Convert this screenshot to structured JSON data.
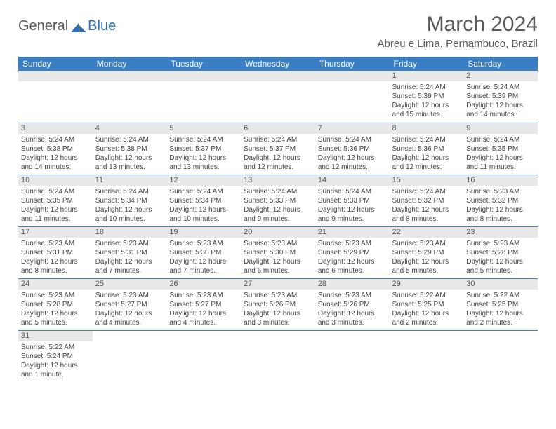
{
  "logo": {
    "text1": "General",
    "text2": "Blue"
  },
  "title": "March 2024",
  "location": "Abreu e Lima, Pernambuco, Brazil",
  "colors": {
    "header_bg": "#3a7fc4",
    "header_fg": "#ffffff",
    "daynum_bg": "#e8e8e8",
    "rule": "#3a7fc4",
    "text": "#444444",
    "title_text": "#5a5a5a"
  },
  "weekdays": [
    "Sunday",
    "Monday",
    "Tuesday",
    "Wednesday",
    "Thursday",
    "Friday",
    "Saturday"
  ],
  "weeks": [
    [
      null,
      null,
      null,
      null,
      null,
      {
        "n": "1",
        "sr": "5:24 AM",
        "ss": "5:39 PM",
        "dl": "12 hours and 15 minutes."
      },
      {
        "n": "2",
        "sr": "5:24 AM",
        "ss": "5:39 PM",
        "dl": "12 hours and 14 minutes."
      }
    ],
    [
      {
        "n": "3",
        "sr": "5:24 AM",
        "ss": "5:38 PM",
        "dl": "12 hours and 14 minutes."
      },
      {
        "n": "4",
        "sr": "5:24 AM",
        "ss": "5:38 PM",
        "dl": "12 hours and 13 minutes."
      },
      {
        "n": "5",
        "sr": "5:24 AM",
        "ss": "5:37 PM",
        "dl": "12 hours and 13 minutes."
      },
      {
        "n": "6",
        "sr": "5:24 AM",
        "ss": "5:37 PM",
        "dl": "12 hours and 12 minutes."
      },
      {
        "n": "7",
        "sr": "5:24 AM",
        "ss": "5:36 PM",
        "dl": "12 hours and 12 minutes."
      },
      {
        "n": "8",
        "sr": "5:24 AM",
        "ss": "5:36 PM",
        "dl": "12 hours and 12 minutes."
      },
      {
        "n": "9",
        "sr": "5:24 AM",
        "ss": "5:35 PM",
        "dl": "12 hours and 11 minutes."
      }
    ],
    [
      {
        "n": "10",
        "sr": "5:24 AM",
        "ss": "5:35 PM",
        "dl": "12 hours and 11 minutes."
      },
      {
        "n": "11",
        "sr": "5:24 AM",
        "ss": "5:34 PM",
        "dl": "12 hours and 10 minutes."
      },
      {
        "n": "12",
        "sr": "5:24 AM",
        "ss": "5:34 PM",
        "dl": "12 hours and 10 minutes."
      },
      {
        "n": "13",
        "sr": "5:24 AM",
        "ss": "5:33 PM",
        "dl": "12 hours and 9 minutes."
      },
      {
        "n": "14",
        "sr": "5:24 AM",
        "ss": "5:33 PM",
        "dl": "12 hours and 9 minutes."
      },
      {
        "n": "15",
        "sr": "5:24 AM",
        "ss": "5:32 PM",
        "dl": "12 hours and 8 minutes."
      },
      {
        "n": "16",
        "sr": "5:23 AM",
        "ss": "5:32 PM",
        "dl": "12 hours and 8 minutes."
      }
    ],
    [
      {
        "n": "17",
        "sr": "5:23 AM",
        "ss": "5:31 PM",
        "dl": "12 hours and 8 minutes."
      },
      {
        "n": "18",
        "sr": "5:23 AM",
        "ss": "5:31 PM",
        "dl": "12 hours and 7 minutes."
      },
      {
        "n": "19",
        "sr": "5:23 AM",
        "ss": "5:30 PM",
        "dl": "12 hours and 7 minutes."
      },
      {
        "n": "20",
        "sr": "5:23 AM",
        "ss": "5:30 PM",
        "dl": "12 hours and 6 minutes."
      },
      {
        "n": "21",
        "sr": "5:23 AM",
        "ss": "5:29 PM",
        "dl": "12 hours and 6 minutes."
      },
      {
        "n": "22",
        "sr": "5:23 AM",
        "ss": "5:29 PM",
        "dl": "12 hours and 5 minutes."
      },
      {
        "n": "23",
        "sr": "5:23 AM",
        "ss": "5:28 PM",
        "dl": "12 hours and 5 minutes."
      }
    ],
    [
      {
        "n": "24",
        "sr": "5:23 AM",
        "ss": "5:28 PM",
        "dl": "12 hours and 5 minutes."
      },
      {
        "n": "25",
        "sr": "5:23 AM",
        "ss": "5:27 PM",
        "dl": "12 hours and 4 minutes."
      },
      {
        "n": "26",
        "sr": "5:23 AM",
        "ss": "5:27 PM",
        "dl": "12 hours and 4 minutes."
      },
      {
        "n": "27",
        "sr": "5:23 AM",
        "ss": "5:26 PM",
        "dl": "12 hours and 3 minutes."
      },
      {
        "n": "28",
        "sr": "5:23 AM",
        "ss": "5:26 PM",
        "dl": "12 hours and 3 minutes."
      },
      {
        "n": "29",
        "sr": "5:22 AM",
        "ss": "5:25 PM",
        "dl": "12 hours and 2 minutes."
      },
      {
        "n": "30",
        "sr": "5:22 AM",
        "ss": "5:25 PM",
        "dl": "12 hours and 2 minutes."
      }
    ],
    [
      {
        "n": "31",
        "sr": "5:22 AM",
        "ss": "5:24 PM",
        "dl": "12 hours and 1 minute."
      },
      null,
      null,
      null,
      null,
      null,
      null
    ]
  ],
  "labels": {
    "sunrise": "Sunrise:",
    "sunset": "Sunset:",
    "daylight": "Daylight:"
  }
}
